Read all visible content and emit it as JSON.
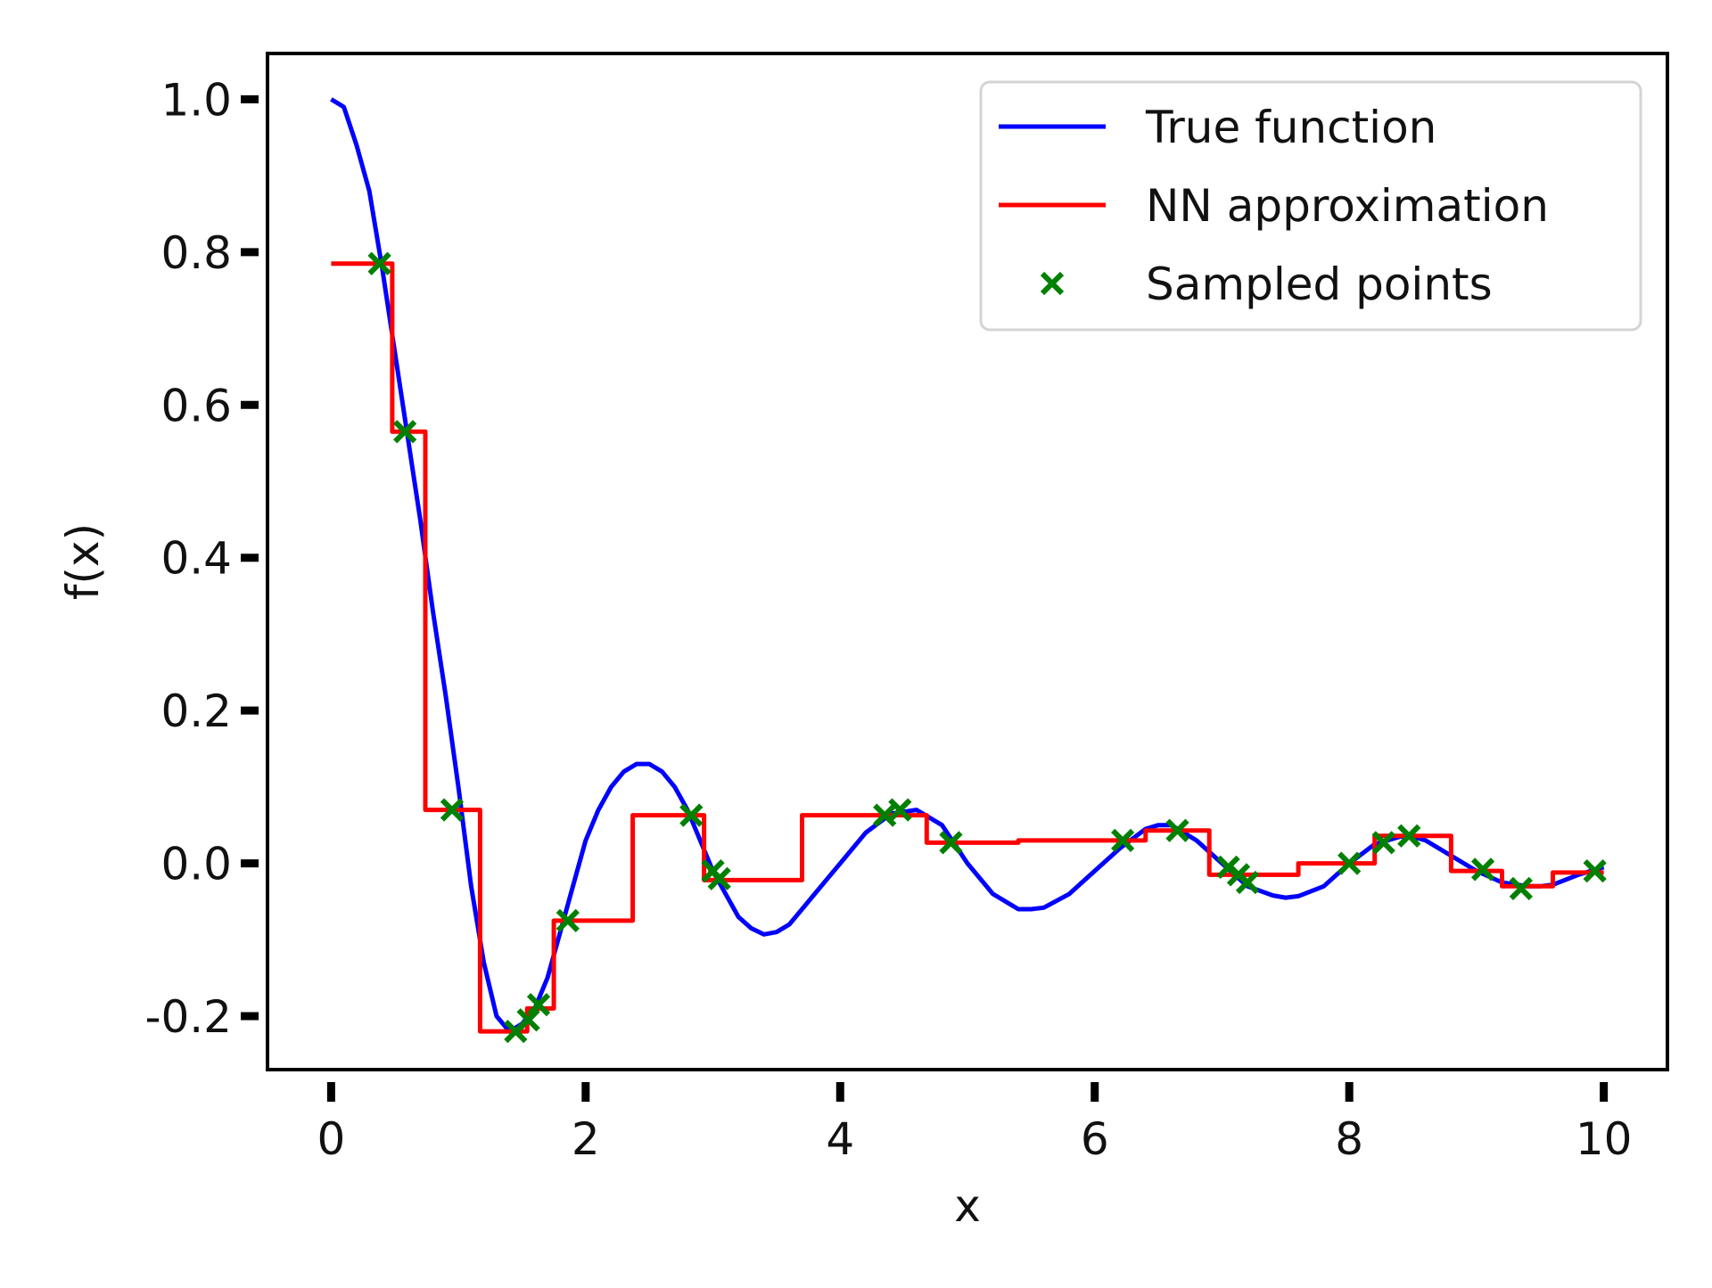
{
  "chart_data": {
    "type": "line",
    "title": "",
    "xlabel": "x",
    "ylabel": "f(x)",
    "xlim": [
      -0.5,
      10.5
    ],
    "ylim": [
      -0.27,
      1.06
    ],
    "xticks": [
      0,
      2,
      4,
      6,
      8,
      10
    ],
    "xtick_labels": [
      "0",
      "2",
      "4",
      "6",
      "8",
      "10"
    ],
    "yticks": [
      -0.2,
      0.0,
      0.2,
      0.4,
      0.6,
      0.8,
      1.0
    ],
    "ytick_labels": [
      "-0.2",
      "0.0",
      "0.2",
      "0.4",
      "0.6",
      "0.8",
      "1.0"
    ],
    "grid": false,
    "legend_position": "top-right",
    "series": [
      {
        "name": "True function",
        "kind": "line",
        "color": "#0000ff",
        "x": [
          0.0,
          0.1,
          0.2,
          0.3,
          0.4,
          0.5,
          0.6,
          0.7,
          0.8,
          0.9,
          1.0,
          1.1,
          1.2,
          1.3,
          1.4,
          1.5,
          1.6,
          1.7,
          1.8,
          1.9,
          2.0,
          2.1,
          2.2,
          2.3,
          2.4,
          2.5,
          2.6,
          2.7,
          2.8,
          2.9,
          3.0,
          3.1,
          3.2,
          3.3,
          3.4,
          3.5,
          3.6,
          3.7,
          3.8,
          3.9,
          4.0,
          4.2,
          4.4,
          4.6,
          4.8,
          5.0,
          5.2,
          5.4,
          5.5,
          5.6,
          5.8,
          6.0,
          6.2,
          6.4,
          6.5,
          6.6,
          6.8,
          7.0,
          7.2,
          7.4,
          7.5,
          7.6,
          7.8,
          8.0,
          8.2,
          8.4,
          8.5,
          8.6,
          8.8,
          9.0,
          9.2,
          9.4,
          9.5,
          9.6,
          9.8,
          10.0
        ],
        "y": [
          1.0,
          0.99,
          0.94,
          0.88,
          0.78,
          0.67,
          0.56,
          0.45,
          0.33,
          0.22,
          0.1,
          -0.03,
          -0.13,
          -0.2,
          -0.22,
          -0.21,
          -0.19,
          -0.15,
          -0.09,
          -0.03,
          0.03,
          0.07,
          0.1,
          0.12,
          0.13,
          0.13,
          0.12,
          0.1,
          0.07,
          0.03,
          -0.01,
          -0.04,
          -0.07,
          -0.085,
          -0.093,
          -0.09,
          -0.08,
          -0.06,
          -0.04,
          -0.02,
          0.0,
          0.04,
          0.065,
          0.07,
          0.05,
          0.0,
          -0.04,
          -0.06,
          -0.06,
          -0.058,
          -0.04,
          -0.01,
          0.02,
          0.045,
          0.05,
          0.05,
          0.03,
          0.0,
          -0.03,
          -0.042,
          -0.045,
          -0.043,
          -0.03,
          0.0,
          0.025,
          0.035,
          0.035,
          0.03,
          0.01,
          -0.01,
          -0.025,
          -0.03,
          -0.03,
          -0.028,
          -0.015,
          -0.005
        ]
      },
      {
        "name": "NN approximation",
        "kind": "step",
        "color": "#ff0000",
        "x": [
          0.0,
          0.48,
          0.48,
          0.74,
          0.74,
          1.17,
          1.17,
          1.54,
          1.54,
          1.75,
          1.75,
          2.37,
          2.37,
          2.93,
          2.93,
          3.7,
          3.7,
          4.68,
          4.68,
          5.4,
          5.4,
          6.4,
          6.4,
          6.9,
          6.9,
          7.6,
          7.6,
          7.96,
          7.96,
          8.2,
          8.2,
          8.8,
          8.8,
          9.2,
          9.2,
          9.6,
          9.6,
          10.0
        ],
        "y": [
          0.785,
          0.785,
          0.565,
          0.565,
          0.07,
          0.07,
          -0.22,
          -0.22,
          -0.19,
          -0.19,
          -0.075,
          -0.075,
          0.063,
          0.063,
          -0.022,
          -0.022,
          0.063,
          0.063,
          0.027,
          0.027,
          0.03,
          0.03,
          0.043,
          0.043,
          -0.015,
          -0.015,
          0.0,
          0.0,
          0.0,
          0.0,
          0.036,
          0.036,
          -0.01,
          -0.01,
          -0.03,
          -0.03,
          -0.012,
          -0.012
        ]
      },
      {
        "name": "Sampled points",
        "kind": "scatter",
        "color": "#008000",
        "marker": "x",
        "x": [
          0.38,
          0.58,
          0.95,
          1.45,
          1.55,
          1.63,
          1.86,
          2.83,
          3.0,
          3.05,
          4.35,
          4.47,
          4.87,
          6.22,
          6.65,
          7.05,
          7.13,
          7.2,
          8.0,
          8.27,
          8.47,
          9.05,
          9.35,
          9.93
        ],
        "y": [
          0.785,
          0.565,
          0.07,
          -0.22,
          -0.205,
          -0.185,
          -0.075,
          0.063,
          -0.01,
          -0.02,
          0.063,
          0.07,
          0.027,
          0.03,
          0.043,
          -0.005,
          -0.015,
          -0.025,
          0.0,
          0.027,
          0.036,
          -0.008,
          -0.033,
          -0.01
        ]
      }
    ]
  }
}
